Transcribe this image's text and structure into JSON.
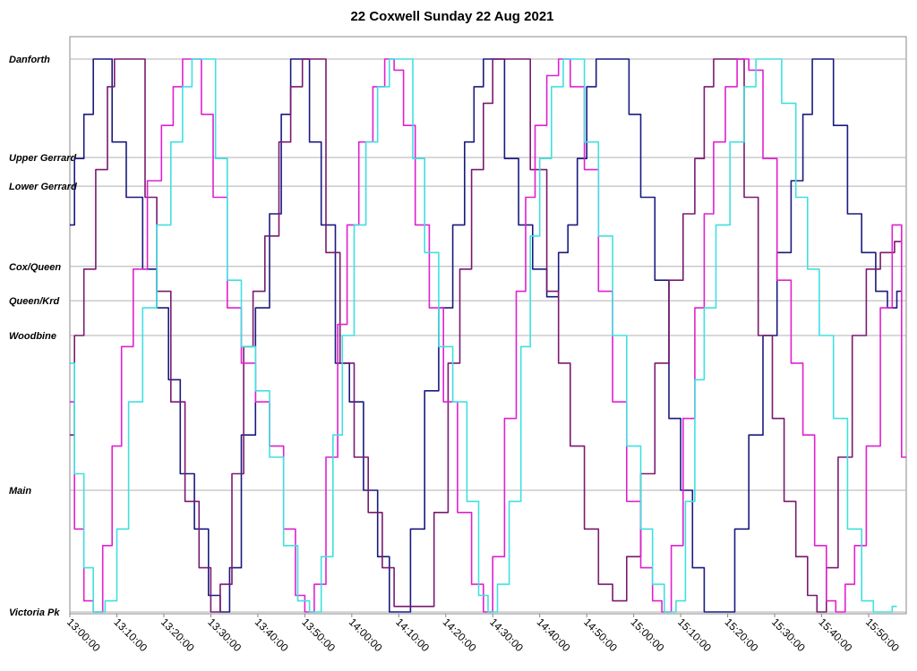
{
  "chart_data": {
    "type": "line",
    "title": "22 Coxwell Sunday 22 Aug 2021",
    "xlabel": "",
    "ylabel": "",
    "xlim": [
      "13:00:00",
      "15:58:00"
    ],
    "x_ticks": [
      "13:00:00",
      "13:10:00",
      "13:20:00",
      "13:30:00",
      "13:40:00",
      "13:50:00",
      "14:00:00",
      "14:10:00",
      "14:20:00",
      "14:30:00",
      "14:40:00",
      "14:50:00",
      "15:00:00",
      "15:10:00",
      "15:20:00",
      "15:30:00",
      "15:40:00",
      "15:50:00"
    ],
    "y_stops": [
      {
        "name": "Danforth",
        "pos": 0.0
      },
      {
        "name": "Upper Gerrard",
        "pos": 0.178
      },
      {
        "name": "Lower Gerrard",
        "pos": 0.23
      },
      {
        "name": "Cox/Queen",
        "pos": 0.375
      },
      {
        "name": "Queen/Krd",
        "pos": 0.437
      },
      {
        "name": "Woodbine",
        "pos": 0.5
      },
      {
        "name": "Main",
        "pos": 0.78
      },
      {
        "name": "Victoria Pk",
        "pos": 1.0
      }
    ],
    "grid": true,
    "legend": "none",
    "series": [
      {
        "color": "#1a1a80",
        "points": [
          [
            "13:00:00",
            0.3
          ],
          [
            "13:02:00",
            0.18
          ],
          [
            "13:04:00",
            0.1
          ],
          [
            "13:06:00",
            0.0
          ],
          [
            "13:08:00",
            0.0
          ],
          [
            "13:10:00",
            0.15
          ],
          [
            "13:14:00",
            0.25
          ],
          [
            "13:17:00",
            0.38
          ],
          [
            "13:20:00",
            0.45
          ],
          [
            "13:22:00",
            0.58
          ],
          [
            "13:25:00",
            0.75
          ],
          [
            "13:28:00",
            0.85
          ],
          [
            "13:31:00",
            0.97
          ],
          [
            "13:33:00",
            1.0
          ],
          [
            "13:35:00",
            0.92
          ],
          [
            "13:38:00",
            0.68
          ],
          [
            "13:41:00",
            0.45
          ],
          [
            "13:44:00",
            0.28
          ],
          [
            "13:46:00",
            0.1
          ],
          [
            "13:48:00",
            0.0
          ],
          [
            "13:50:00",
            0.0
          ],
          [
            "13:52:00",
            0.15
          ],
          [
            "13:55:00",
            0.3
          ],
          [
            "13:58:00",
            0.55
          ],
          [
            "14:01:00",
            0.62
          ],
          [
            "14:04:00",
            0.78
          ],
          [
            "14:07:00",
            0.9
          ],
          [
            "14:09:00",
            1.0
          ],
          [
            "14:11:00",
            1.0
          ],
          [
            "14:14:00",
            0.85
          ],
          [
            "14:17:00",
            0.6
          ],
          [
            "14:20:00",
            0.45
          ],
          [
            "14:23:00",
            0.3
          ],
          [
            "14:25:00",
            0.15
          ],
          [
            "14:27:00",
            0.05
          ],
          [
            "14:29:00",
            0.0
          ],
          [
            "14:31:00",
            0.0
          ],
          [
            "14:34:00",
            0.18
          ],
          [
            "14:37:00",
            0.3
          ],
          [
            "14:40:00",
            0.38
          ],
          [
            "14:43:00",
            0.43
          ],
          [
            "14:45:00",
            0.35
          ],
          [
            "14:47:00",
            0.3
          ],
          [
            "14:49:00",
            0.18
          ],
          [
            "14:51:00",
            0.05
          ],
          [
            "14:53:00",
            0.0
          ],
          [
            "14:58:00",
            0.0
          ],
          [
            "15:00:00",
            0.1
          ],
          [
            "15:03:00",
            0.25
          ],
          [
            "15:06:00",
            0.4
          ],
          [
            "15:09:00",
            0.65
          ],
          [
            "15:11:00",
            0.78
          ],
          [
            "15:14:00",
            0.92
          ],
          [
            "15:16:00",
            1.0
          ],
          [
            "15:20:00",
            1.0
          ],
          [
            "15:23:00",
            0.85
          ],
          [
            "15:26:00",
            0.68
          ],
          [
            "15:29:00",
            0.5
          ],
          [
            "15:32:00",
            0.35
          ],
          [
            "15:35:00",
            0.22
          ],
          [
            "15:37:00",
            0.1
          ],
          [
            "15:39:00",
            0.0
          ],
          [
            "15:41:00",
            0.0
          ],
          [
            "15:44:00",
            0.12
          ],
          [
            "15:47:00",
            0.28
          ],
          [
            "15:50:00",
            0.35
          ],
          [
            "15:53:00",
            0.42
          ],
          [
            "15:55:00",
            0.45
          ],
          [
            "15:57:00",
            0.42
          ]
        ]
      },
      {
        "color": "#7a1a70",
        "points": [
          [
            "13:00:00",
            0.68
          ],
          [
            "13:02:00",
            0.5
          ],
          [
            "13:04:00",
            0.38
          ],
          [
            "13:07:00",
            0.2
          ],
          [
            "13:09:00",
            0.05
          ],
          [
            "13:10:00",
            0.0
          ],
          [
            "13:15:00",
            0.0
          ],
          [
            "13:17:00",
            0.25
          ],
          [
            "13:20:00",
            0.42
          ],
          [
            "13:23:00",
            0.62
          ],
          [
            "13:26:00",
            0.8
          ],
          [
            "13:29:00",
            0.92
          ],
          [
            "13:31:00",
            1.0
          ],
          [
            "13:33:00",
            0.95
          ],
          [
            "13:36:00",
            0.75
          ],
          [
            "13:38:00",
            0.52
          ],
          [
            "13:40:00",
            0.42
          ],
          [
            "13:43:00",
            0.32
          ],
          [
            "13:46:00",
            0.15
          ],
          [
            "13:48:00",
            0.05
          ],
          [
            "13:51:00",
            0.0
          ],
          [
            "13:53:00",
            0.0
          ],
          [
            "13:56:00",
            0.35
          ],
          [
            "13:59:00",
            0.55
          ],
          [
            "14:02:00",
            0.72
          ],
          [
            "14:05:00",
            0.82
          ],
          [
            "14:08:00",
            0.92
          ],
          [
            "14:10:00",
            0.99
          ],
          [
            "14:16:00",
            0.99
          ],
          [
            "14:19:00",
            0.82
          ],
          [
            "14:22:00",
            0.55
          ],
          [
            "14:24:00",
            0.38
          ],
          [
            "14:27:00",
            0.2
          ],
          [
            "14:29:00",
            0.08
          ],
          [
            "14:31:00",
            0.0
          ],
          [
            "14:36:00",
            0.0
          ],
          [
            "14:40:00",
            0.2
          ],
          [
            "14:43:00",
            0.42
          ],
          [
            "14:45:00",
            0.55
          ],
          [
            "14:48:00",
            0.7
          ],
          [
            "14:51:00",
            0.85
          ],
          [
            "14:54:00",
            0.95
          ],
          [
            "14:57:00",
            0.98
          ],
          [
            "15:00:00",
            0.9
          ],
          [
            "15:03:00",
            0.75
          ],
          [
            "15:06:00",
            0.55
          ],
          [
            "15:09:00",
            0.4
          ],
          [
            "15:12:00",
            0.28
          ],
          [
            "15:14:00",
            0.18
          ],
          [
            "15:16:00",
            0.05
          ],
          [
            "15:18:00",
            0.0
          ],
          [
            "15:22:00",
            0.0
          ],
          [
            "15:25:00",
            0.25
          ],
          [
            "15:28:00",
            0.5
          ],
          [
            "15:31:00",
            0.65
          ],
          [
            "15:33:00",
            0.8
          ],
          [
            "15:36:00",
            0.9
          ],
          [
            "15:38:00",
            0.97
          ],
          [
            "15:40:00",
            1.0
          ],
          [
            "15:42:00",
            0.92
          ],
          [
            "15:45:00",
            0.72
          ],
          [
            "15:48:00",
            0.5
          ],
          [
            "15:51:00",
            0.38
          ],
          [
            "15:54:00",
            0.35
          ],
          [
            "15:57:00",
            0.33
          ]
        ]
      },
      {
        "color": "#e020d0",
        "points": [
          [
            "13:00:00",
            0.62
          ],
          [
            "13:02:00",
            0.85
          ],
          [
            "13:04:00",
            0.98
          ],
          [
            "13:06:00",
            1.0
          ],
          [
            "13:08:00",
            0.88
          ],
          [
            "13:10:00",
            0.7
          ],
          [
            "13:12:00",
            0.52
          ],
          [
            "13:15:00",
            0.38
          ],
          [
            "13:18:00",
            0.22
          ],
          [
            "13:21:00",
            0.12
          ],
          [
            "13:23:00",
            0.05
          ],
          [
            "13:25:00",
            0.0
          ],
          [
            "13:27:00",
            0.0
          ],
          [
            "13:29:00",
            0.1
          ],
          [
            "13:32:00",
            0.25
          ],
          [
            "13:35:00",
            0.45
          ],
          [
            "13:38:00",
            0.55
          ],
          [
            "13:41:00",
            0.62
          ],
          [
            "13:44:00",
            0.7
          ],
          [
            "13:47:00",
            0.85
          ],
          [
            "13:49:00",
            0.97
          ],
          [
            "13:51:00",
            1.0
          ],
          [
            "13:53:00",
            0.95
          ],
          [
            "13:56:00",
            0.72
          ],
          [
            "13:58:00",
            0.48
          ],
          [
            "14:00:00",
            0.3
          ],
          [
            "14:03:00",
            0.15
          ],
          [
            "14:06:00",
            0.05
          ],
          [
            "14:08:00",
            0.0
          ],
          [
            "14:10:00",
            0.02
          ],
          [
            "14:12:00",
            0.12
          ],
          [
            "14:15:00",
            0.3
          ],
          [
            "14:18:00",
            0.45
          ],
          [
            "14:21:00",
            0.62
          ],
          [
            "14:24:00",
            0.82
          ],
          [
            "14:27:00",
            0.95
          ],
          [
            "14:29:00",
            1.0
          ],
          [
            "14:31:00",
            0.9
          ],
          [
            "14:34:00",
            0.65
          ],
          [
            "14:36:00",
            0.42
          ],
          [
            "14:38:00",
            0.25
          ],
          [
            "14:40:00",
            0.12
          ],
          [
            "14:43:00",
            0.03
          ],
          [
            "14:45:00",
            0.0
          ],
          [
            "14:48:00",
            0.05
          ],
          [
            "14:51:00",
            0.2
          ],
          [
            "14:54:00",
            0.42
          ],
          [
            "14:57:00",
            0.62
          ],
          [
            "15:00:00",
            0.8
          ],
          [
            "15:03:00",
            0.92
          ],
          [
            "15:05:00",
            0.98
          ],
          [
            "15:07:00",
            1.0
          ],
          [
            "15:09:00",
            0.88
          ],
          [
            "15:12:00",
            0.65
          ],
          [
            "15:14:00",
            0.45
          ],
          [
            "15:16:00",
            0.28
          ],
          [
            "15:18:00",
            0.15
          ],
          [
            "15:21:00",
            0.05
          ],
          [
            "15:23:00",
            0.0
          ],
          [
            "15:26:00",
            0.02
          ],
          [
            "15:29:00",
            0.18
          ],
          [
            "15:32:00",
            0.4
          ],
          [
            "15:35:00",
            0.55
          ],
          [
            "15:37:00",
            0.68
          ],
          [
            "15:40:00",
            0.88
          ],
          [
            "15:42:00",
            0.98
          ],
          [
            "15:44:00",
            1.0
          ],
          [
            "15:46:00",
            0.95
          ],
          [
            "15:48:00",
            0.88
          ],
          [
            "15:51:00",
            0.7
          ],
          [
            "15:54:00",
            0.45
          ],
          [
            "15:56:00",
            0.3
          ],
          [
            "15:58:00",
            0.72
          ]
        ]
      },
      {
        "color": "#40e0e0",
        "points": [
          [
            "13:00:00",
            0.55
          ],
          [
            "13:02:00",
            0.75
          ],
          [
            "13:04:00",
            0.92
          ],
          [
            "13:06:00",
            1.0
          ],
          [
            "13:09:00",
            0.98
          ],
          [
            "13:11:00",
            0.85
          ],
          [
            "13:14:00",
            0.62
          ],
          [
            "13:17:00",
            0.45
          ],
          [
            "13:20:00",
            0.3
          ],
          [
            "13:23:00",
            0.15
          ],
          [
            "13:25:00",
            0.05
          ],
          [
            "13:27:00",
            0.0
          ],
          [
            "13:30:00",
            0.0
          ],
          [
            "13:32:00",
            0.18
          ],
          [
            "13:35:00",
            0.4
          ],
          [
            "13:38:00",
            0.52
          ],
          [
            "13:41:00",
            0.6
          ],
          [
            "13:44:00",
            0.72
          ],
          [
            "13:47:00",
            0.88
          ],
          [
            "13:50:00",
            0.98
          ],
          [
            "13:52:00",
            1.0
          ],
          [
            "13:55:00",
            0.9
          ],
          [
            "13:57:00",
            0.68
          ],
          [
            "13:59:00",
            0.5
          ],
          [
            "14:02:00",
            0.3
          ],
          [
            "14:04:00",
            0.15
          ],
          [
            "14:07:00",
            0.05
          ],
          [
            "14:09:00",
            0.0
          ],
          [
            "14:12:00",
            0.0
          ],
          [
            "14:14:00",
            0.18
          ],
          [
            "14:17:00",
            0.35
          ],
          [
            "14:20:00",
            0.52
          ],
          [
            "14:23:00",
            0.62
          ],
          [
            "14:26:00",
            0.8
          ],
          [
            "14:28:00",
            0.97
          ],
          [
            "14:30:00",
            1.0
          ],
          [
            "14:32:00",
            0.95
          ],
          [
            "14:35:00",
            0.8
          ],
          [
            "14:37:00",
            0.52
          ],
          [
            "14:39:00",
            0.32
          ],
          [
            "14:41:00",
            0.18
          ],
          [
            "14:44:00",
            0.05
          ],
          [
            "14:46:00",
            0.0
          ],
          [
            "14:48:00",
            0.0
          ],
          [
            "14:51:00",
            0.15
          ],
          [
            "14:54:00",
            0.32
          ],
          [
            "14:57:00",
            0.5
          ],
          [
            "15:00:00",
            0.7
          ],
          [
            "15:03:00",
            0.85
          ],
          [
            "15:05:00",
            0.95
          ],
          [
            "15:08:00",
            1.0
          ],
          [
            "15:10:00",
            0.98
          ],
          [
            "15:12:00",
            0.8
          ],
          [
            "15:14:00",
            0.58
          ],
          [
            "15:16:00",
            0.45
          ],
          [
            "15:19:00",
            0.3
          ],
          [
            "15:22:00",
            0.15
          ],
          [
            "15:25:00",
            0.05
          ],
          [
            "15:27:00",
            0.0
          ],
          [
            "15:30:00",
            0.0
          ],
          [
            "15:33:00",
            0.08
          ],
          [
            "15:36:00",
            0.25
          ],
          [
            "15:38:00",
            0.38
          ],
          [
            "15:41:00",
            0.5
          ],
          [
            "15:44:00",
            0.65
          ],
          [
            "15:47:00",
            0.85
          ],
          [
            "15:50:00",
            0.98
          ],
          [
            "15:52:00",
            1.0
          ],
          [
            "15:54:00",
            1.0
          ],
          [
            "15:56:00",
            0.99
          ]
        ]
      }
    ]
  }
}
